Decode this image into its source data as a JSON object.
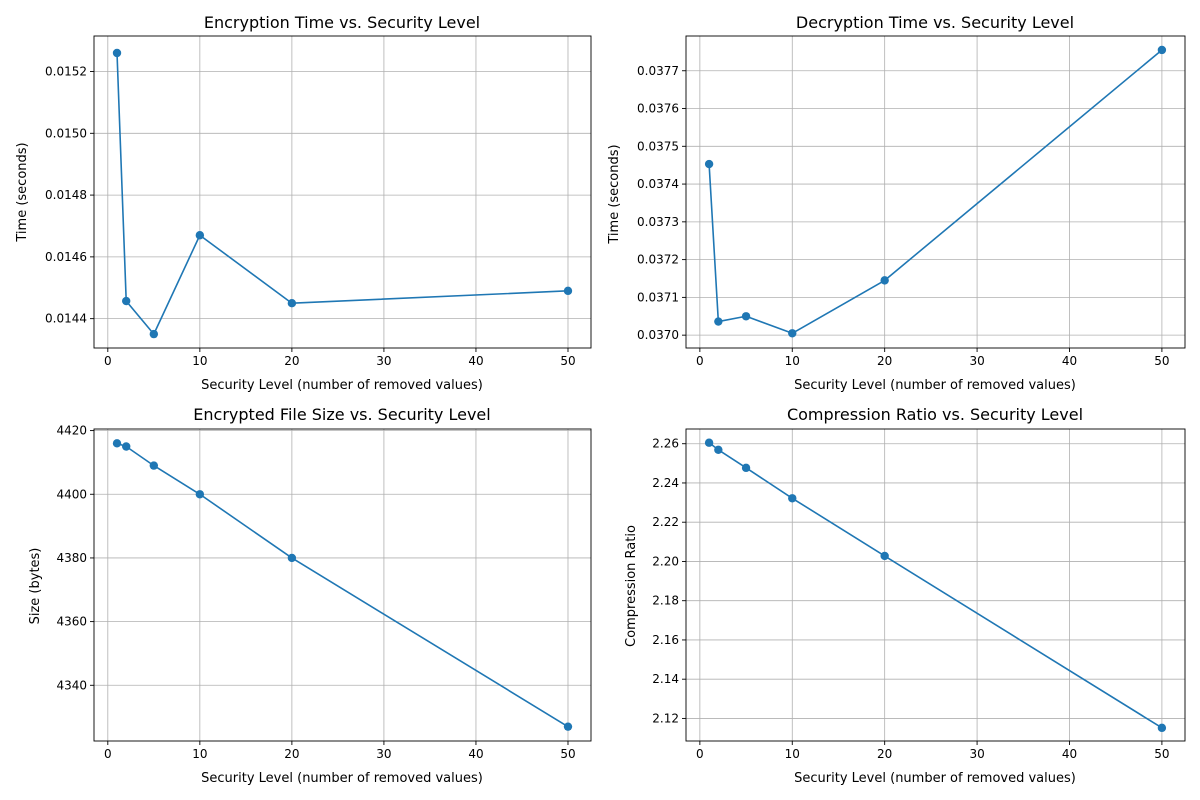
{
  "chart_data": [
    {
      "type": "line",
      "title": "Encryption Time vs. Security Level",
      "xlabel": "Security Level (number of removed values)",
      "ylabel": "Time (seconds)",
      "xlim": [
        -1.5,
        52.5
      ],
      "ylim": [
        0.014305,
        0.015315
      ],
      "xticks": [
        0,
        10,
        20,
        30,
        40,
        50
      ],
      "xtick_labels": [
        "0",
        "10",
        "20",
        "30",
        "40",
        "50"
      ],
      "yticks": [
        0.0144,
        0.0146,
        0.0148,
        0.015,
        0.0152
      ],
      "ytick_labels": [
        "0.0144",
        "0.0146",
        "0.0148",
        "0.0150",
        "0.0152"
      ],
      "grid": true,
      "color": "#1f77b4",
      "series": [
        {
          "x": [
            1,
            2,
            5,
            10,
            20,
            50
          ],
          "y": [
            0.01526,
            0.014457,
            0.01435,
            0.01467,
            0.01445,
            0.01449
          ]
        }
      ]
    },
    {
      "type": "line",
      "title": "Decryption Time vs. Security Level",
      "xlabel": "Security Level (number of removed values)",
      "ylabel": "Time (seconds)",
      "xlim": [
        -1.5,
        52.5
      ],
      "ylim": [
        0.036966,
        0.037792
      ],
      "xticks": [
        0,
        10,
        20,
        30,
        40,
        50
      ],
      "xtick_labels": [
        "0",
        "10",
        "20",
        "30",
        "40",
        "50"
      ],
      "yticks": [
        0.037,
        0.0371,
        0.0372,
        0.0373,
        0.0374,
        0.0375,
        0.0376,
        0.0377
      ],
      "ytick_labels": [
        "0.0370",
        "0.0371",
        "0.0372",
        "0.0373",
        "0.0374",
        "0.0375",
        "0.0376",
        "0.0377"
      ],
      "grid": true,
      "color": "#1f77b4",
      "series": [
        {
          "x": [
            1,
            2,
            5,
            10,
            20,
            50
          ],
          "y": [
            0.037453,
            0.037036,
            0.03705,
            0.037005,
            0.037145,
            0.037755
          ]
        }
      ]
    },
    {
      "type": "line",
      "title": "Encrypted File Size vs. Security Level",
      "xlabel": "Security Level (number of removed values)",
      "ylabel": "Size (bytes)",
      "xlim": [
        -1.5,
        52.5
      ],
      "ylim": [
        4322.5,
        4420.5
      ],
      "xticks": [
        0,
        10,
        20,
        30,
        40,
        50
      ],
      "xtick_labels": [
        "0",
        "10",
        "20",
        "30",
        "40",
        "50"
      ],
      "yticks": [
        4340,
        4360,
        4380,
        4400,
        4420
      ],
      "ytick_labels": [
        "4340",
        "4360",
        "4380",
        "4400",
        "4420"
      ],
      "grid": true,
      "color": "#1f77b4",
      "series": [
        {
          "x": [
            1,
            2,
            5,
            10,
            20,
            50
          ],
          "y": [
            4416,
            4415,
            4409,
            4400,
            4380,
            4327
          ]
        }
      ]
    },
    {
      "type": "line",
      "title": "Compression Ratio vs. Security Level",
      "xlabel": "Security Level (number of removed values)",
      "ylabel": "Compression Ratio",
      "xlim": [
        -1.5,
        52.5
      ],
      "ylim": [
        2.1085,
        2.2675
      ],
      "xticks": [
        0,
        10,
        20,
        30,
        40,
        50
      ],
      "xtick_labels": [
        "0",
        "10",
        "20",
        "30",
        "40",
        "50"
      ],
      "yticks": [
        2.12,
        2.14,
        2.16,
        2.18,
        2.2,
        2.22,
        2.24,
        2.26
      ],
      "ytick_labels": [
        "2.12",
        "2.14",
        "2.16",
        "2.18",
        "2.20",
        "2.22",
        "2.24",
        "2.26"
      ],
      "grid": true,
      "color": "#1f77b4",
      "series": [
        {
          "x": [
            1,
            2,
            5,
            10,
            20,
            50
          ],
          "y": [
            2.2605,
            2.2569,
            2.2477,
            2.2322,
            2.2028,
            2.1152
          ]
        }
      ]
    }
  ]
}
